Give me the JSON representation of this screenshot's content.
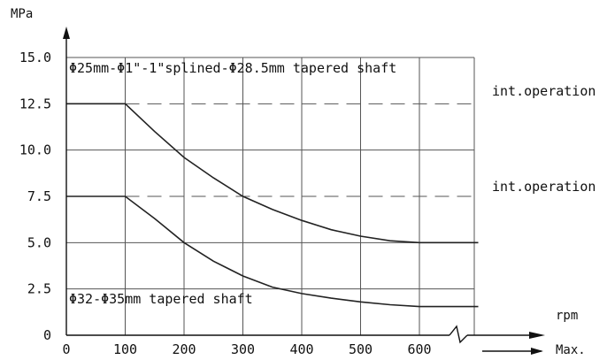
{
  "chart_data": {
    "type": "line",
    "ylabel": "MPa",
    "xlabel": "rpm",
    "x_end_label": "Max.",
    "xlim": [
      0,
      700
    ],
    "ylim": [
      0,
      15
    ],
    "x_ticks": [
      0,
      100,
      200,
      300,
      400,
      500,
      600
    ],
    "y_ticks": [
      {
        "value": 0,
        "label": "0"
      },
      {
        "value": 2.5,
        "label": "2.5"
      },
      {
        "value": 5,
        "label": "5.0"
      },
      {
        "value": 7.5,
        "label": "7.5"
      },
      {
        "value": 10,
        "label": "10.0"
      },
      {
        "value": 12.5,
        "label": "12.5"
      },
      {
        "value": 15,
        "label": "15.0"
      }
    ],
    "grid": true,
    "series": [
      {
        "name": "Φ25mm-Φ1\"-1\"splined-Φ28.5mm tapered shaft",
        "x": [
          0,
          100,
          150,
          200,
          250,
          300,
          350,
          400,
          450,
          500,
          550,
          600,
          700
        ],
        "y": [
          12.5,
          12.5,
          11.0,
          9.6,
          8.5,
          7.5,
          6.8,
          6.2,
          5.7,
          5.35,
          5.1,
          5.0,
          5.0
        ]
      },
      {
        "name": "Φ32-Φ35mm tapered shaft",
        "x": [
          0,
          100,
          150,
          200,
          250,
          300,
          350,
          400,
          450,
          500,
          550,
          600,
          700
        ],
        "y": [
          7.5,
          7.5,
          6.3,
          5.0,
          4.0,
          3.2,
          2.6,
          2.25,
          2.0,
          1.8,
          1.65,
          1.55,
          1.55
        ]
      }
    ],
    "reference_lines": [
      {
        "y": 12.5,
        "label": "int.operation"
      },
      {
        "y": 7.5,
        "label": "int.operation"
      }
    ]
  }
}
